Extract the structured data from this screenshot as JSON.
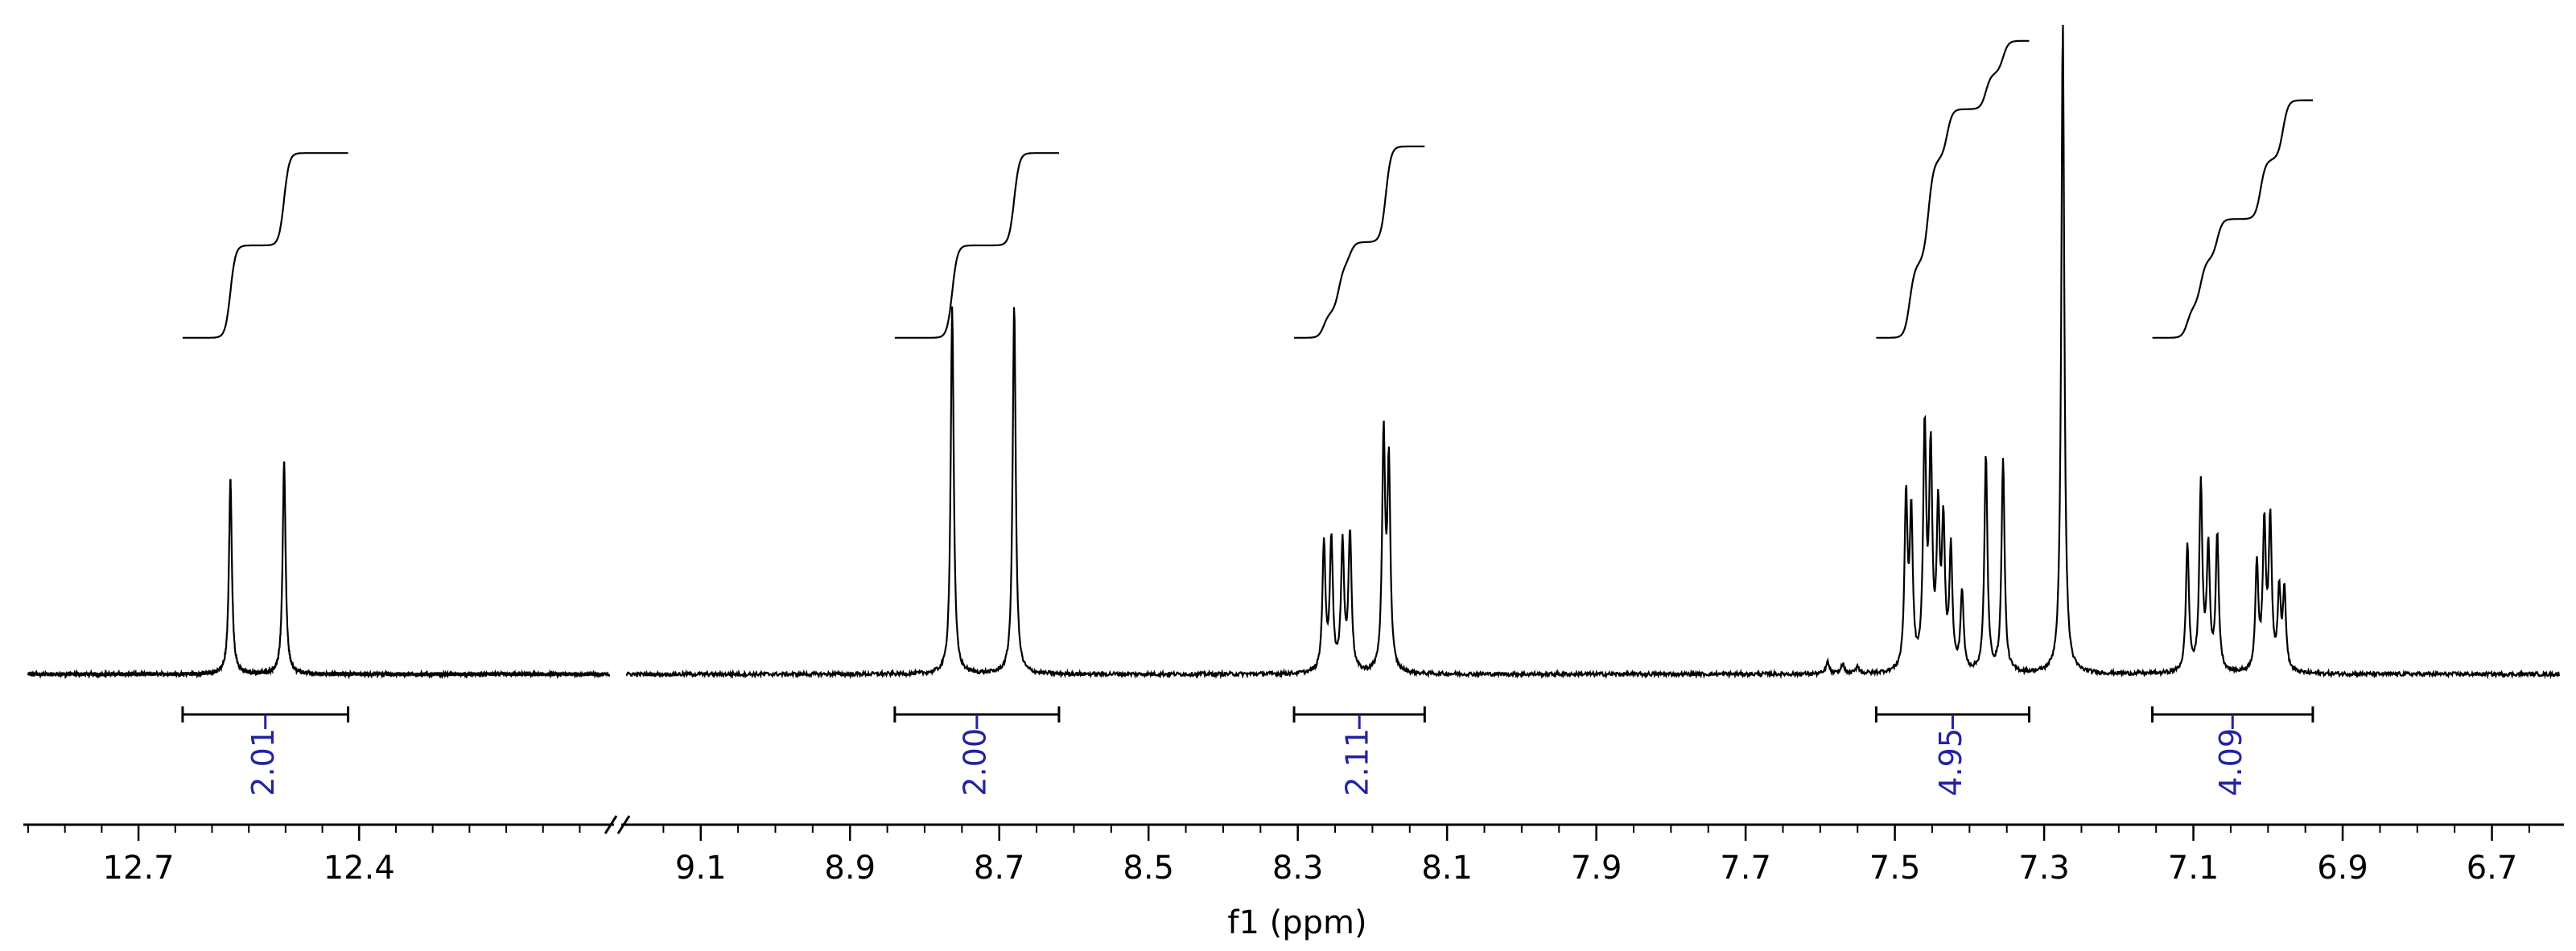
{
  "chart_data": {
    "type": "line",
    "title": "",
    "xlabel": "f1 (ppm)",
    "ylabel": "",
    "x_reversed": true,
    "axis_break": true,
    "segments": [
      {
        "xlim": [
          12.85,
          12.06
        ],
        "major_ticks": [
          "12.7",
          "12.4"
        ],
        "minor_step": 0.05
      },
      {
        "xlim": [
          9.2,
          6.61
        ],
        "major_ticks": [
          "9.1",
          "8.9",
          "8.7",
          "8.5",
          "8.3",
          "8.1",
          "7.9",
          "7.7",
          "7.5",
          "7.3",
          "7.1",
          "6.9",
          "6.7"
        ],
        "minor_step": 0.05
      }
    ],
    "peaks": [
      {
        "ppm": 12.575,
        "height": 0.295
      },
      {
        "ppm": 12.502,
        "height": 0.322
      },
      {
        "ppm": 8.763,
        "height": 0.56
      },
      {
        "ppm": 8.68,
        "height": 0.565
      },
      {
        "ppm": 8.265,
        "height": 0.195
      },
      {
        "ppm": 8.255,
        "height": 0.2
      },
      {
        "ppm": 8.24,
        "height": 0.195
      },
      {
        "ppm": 8.23,
        "height": 0.21
      },
      {
        "ppm": 8.185,
        "height": 0.35
      },
      {
        "ppm": 8.178,
        "height": 0.31
      },
      {
        "ppm": 7.485,
        "height": 0.26
      },
      {
        "ppm": 7.478,
        "height": 0.23
      },
      {
        "ppm": 7.46,
        "height": 0.36
      },
      {
        "ppm": 7.452,
        "height": 0.32
      },
      {
        "ppm": 7.442,
        "height": 0.23
      },
      {
        "ppm": 7.435,
        "height": 0.21
      },
      {
        "ppm": 7.425,
        "height": 0.18
      },
      {
        "ppm": 7.41,
        "height": 0.12
      },
      {
        "ppm": 7.378,
        "height": 0.33
      },
      {
        "ppm": 7.355,
        "height": 0.325
      },
      {
        "ppm": 7.275,
        "height": 0.99
      },
      {
        "ppm": 7.108,
        "height": 0.195
      },
      {
        "ppm": 7.09,
        "height": 0.285
      },
      {
        "ppm": 7.08,
        "height": 0.185
      },
      {
        "ppm": 7.068,
        "height": 0.205
      },
      {
        "ppm": 7.015,
        "height": 0.16
      },
      {
        "ppm": 7.005,
        "height": 0.22
      },
      {
        "ppm": 6.997,
        "height": 0.225
      },
      {
        "ppm": 6.985,
        "height": 0.12
      },
      {
        "ppm": 6.978,
        "height": 0.12
      },
      {
        "ppm": 7.59,
        "height": 0.018
      },
      {
        "ppm": 7.57,
        "height": 0.015
      },
      {
        "ppm": 7.55,
        "height": 0.012
      }
    ],
    "integrals": [
      {
        "label": "2.01",
        "from": 12.64,
        "to": 12.415,
        "steps": [
          {
            "ppm": 12.575,
            "rise": 0.5
          },
          {
            "ppm": 12.502,
            "rise": 0.5
          }
        ],
        "curve_lo": 0.51,
        "curve_hi": 0.79
      },
      {
        "label": "2.00",
        "from": 8.84,
        "to": 8.62,
        "steps": [
          {
            "ppm": 8.763,
            "rise": 0.5
          },
          {
            "ppm": 8.68,
            "rise": 0.5
          }
        ],
        "curve_lo": 0.51,
        "curve_hi": 0.79
      },
      {
        "label": "2.11",
        "from": 8.305,
        "to": 8.13,
        "steps": [
          {
            "ppm": 8.265,
            "rise": 0.13
          },
          {
            "ppm": 8.245,
            "rise": 0.25
          },
          {
            "ppm": 8.23,
            "rise": 0.12
          },
          {
            "ppm": 8.182,
            "rise": 0.5
          }
        ],
        "curve_lo": 0.51,
        "curve_hi": 0.8
      },
      {
        "label": "4.95",
        "from": 7.525,
        "to": 7.32,
        "steps": [
          {
            "ppm": 7.48,
            "rise": 0.25
          },
          {
            "ppm": 7.455,
            "rise": 0.35
          },
          {
            "ppm": 7.43,
            "rise": 0.17
          },
          {
            "ppm": 7.378,
            "rise": 0.12
          },
          {
            "ppm": 7.355,
            "rise": 0.11
          }
        ],
        "curve_lo": 0.51,
        "curve_hi": 0.96
      },
      {
        "label": "4.09",
        "from": 7.155,
        "to": 6.94,
        "steps": [
          {
            "ppm": 7.108,
            "rise": 0.13
          },
          {
            "ppm": 7.09,
            "rise": 0.2
          },
          {
            "ppm": 7.068,
            "rise": 0.17
          },
          {
            "ppm": 7.01,
            "rise": 0.25
          },
          {
            "ppm": 6.98,
            "rise": 0.25
          }
        ],
        "curve_lo": 0.51,
        "curve_hi": 0.87
      }
    ],
    "colors": {
      "spectrum": "#000000",
      "integral_label": "#2323a0",
      "axis": "#000000"
    }
  }
}
